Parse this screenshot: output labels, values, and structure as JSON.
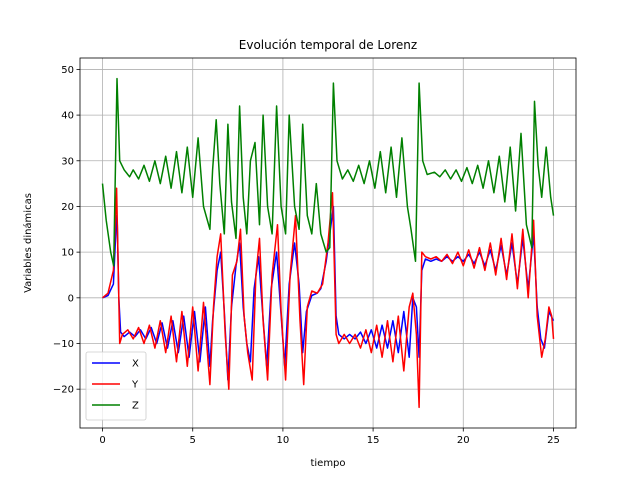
{
  "chart_data": {
    "type": "line",
    "title": "Evolución temporal de Lorenz",
    "xlabel": "tiempo",
    "ylabel": "Variables dinámicas",
    "xlim": [
      -1.25,
      26.25
    ],
    "ylim": [
      -28.5,
      52.5
    ],
    "xticks": [
      0,
      5,
      10,
      15,
      20,
      25
    ],
    "yticks": [
      -20,
      -10,
      0,
      10,
      20,
      30,
      40,
      50
    ],
    "grid": true,
    "legend_position": "lower-left",
    "series": [
      {
        "name": "X",
        "color": "#0000ff",
        "points": [
          [
            0,
            0
          ],
          [
            0.3,
            0.5
          ],
          [
            0.6,
            3
          ],
          [
            0.78,
            18
          ],
          [
            0.82,
            16
          ],
          [
            0.9,
            0
          ],
          [
            1.0,
            -7.5
          ],
          [
            1.2,
            -8.5
          ],
          [
            1.5,
            -7.5
          ],
          [
            1.8,
            -8.5
          ],
          [
            2.1,
            -7
          ],
          [
            2.4,
            -9
          ],
          [
            2.7,
            -6.5
          ],
          [
            3.0,
            -10
          ],
          [
            3.3,
            -5.5
          ],
          [
            3.6,
            -11
          ],
          [
            3.9,
            -5
          ],
          [
            4.2,
            -12
          ],
          [
            4.5,
            -4
          ],
          [
            4.8,
            -13
          ],
          [
            5.1,
            -3
          ],
          [
            5.4,
            -14
          ],
          [
            5.7,
            -2
          ],
          [
            5.95,
            -15
          ],
          [
            6.1,
            -5
          ],
          [
            6.35,
            6
          ],
          [
            6.55,
            10
          ],
          [
            6.75,
            -3
          ],
          [
            6.95,
            -18
          ],
          [
            7.15,
            -2
          ],
          [
            7.4,
            7
          ],
          [
            7.6,
            12
          ],
          [
            7.8,
            -2
          ],
          [
            8.0,
            -10
          ],
          [
            8.2,
            -14
          ],
          [
            8.4,
            2
          ],
          [
            8.65,
            9
          ],
          [
            8.85,
            -2
          ],
          [
            9.1,
            -15
          ],
          [
            9.35,
            2
          ],
          [
            9.65,
            10
          ],
          [
            9.85,
            -1
          ],
          [
            10.1,
            -15
          ],
          [
            10.35,
            3
          ],
          [
            10.65,
            12
          ],
          [
            10.9,
            3
          ],
          [
            11.1,
            -12
          ],
          [
            11.3,
            -3
          ],
          [
            11.6,
            0.5
          ],
          [
            11.9,
            1
          ],
          [
            12.1,
            2
          ],
          [
            12.4,
            8
          ],
          [
            12.6,
            14
          ],
          [
            12.8,
            20
          ],
          [
            12.95,
            -4
          ],
          [
            13.1,
            -8
          ],
          [
            13.4,
            -9
          ],
          [
            13.7,
            -8
          ],
          [
            14.0,
            -9
          ],
          [
            14.3,
            -7.5
          ],
          [
            14.6,
            -10
          ],
          [
            14.9,
            -7
          ],
          [
            15.2,
            -11
          ],
          [
            15.5,
            -6
          ],
          [
            15.8,
            -11
          ],
          [
            16.1,
            -5
          ],
          [
            16.4,
            -12
          ],
          [
            16.7,
            -3
          ],
          [
            17.0,
            -13
          ],
          [
            17.2,
            0
          ],
          [
            17.4,
            -2
          ],
          [
            17.55,
            -13
          ],
          [
            17.7,
            6
          ],
          [
            17.9,
            8.5
          ],
          [
            18.2,
            8
          ],
          [
            18.5,
            8.5
          ],
          [
            18.8,
            8
          ],
          [
            19.1,
            9
          ],
          [
            19.4,
            8
          ],
          [
            19.7,
            9
          ],
          [
            20.0,
            8
          ],
          [
            20.3,
            9.5
          ],
          [
            20.6,
            7.5
          ],
          [
            20.9,
            10
          ],
          [
            21.2,
            7
          ],
          [
            21.5,
            10.5
          ],
          [
            21.8,
            6
          ],
          [
            22.1,
            11.5
          ],
          [
            22.4,
            5
          ],
          [
            22.7,
            12
          ],
          [
            23.0,
            3
          ],
          [
            23.3,
            13
          ],
          [
            23.6,
            2
          ],
          [
            23.9,
            14
          ],
          [
            24.1,
            -2
          ],
          [
            24.3,
            -9
          ],
          [
            24.5,
            -11
          ],
          [
            24.75,
            -3
          ],
          [
            25.0,
            -5
          ]
        ]
      },
      {
        "name": "Y",
        "color": "#ff0000",
        "points": [
          [
            0,
            0
          ],
          [
            0.3,
            1
          ],
          [
            0.6,
            6
          ],
          [
            0.78,
            24
          ],
          [
            0.85,
            10
          ],
          [
            0.95,
            -10
          ],
          [
            1.1,
            -8
          ],
          [
            1.4,
            -7
          ],
          [
            1.7,
            -9
          ],
          [
            2.0,
            -6.5
          ],
          [
            2.3,
            -10
          ],
          [
            2.6,
            -6
          ],
          [
            2.9,
            -11
          ],
          [
            3.2,
            -5
          ],
          [
            3.5,
            -12
          ],
          [
            3.8,
            -4
          ],
          [
            4.1,
            -14
          ],
          [
            4.4,
            -3
          ],
          [
            4.7,
            -15
          ],
          [
            5.0,
            -2
          ],
          [
            5.3,
            -16
          ],
          [
            5.6,
            -1
          ],
          [
            5.95,
            -19
          ],
          [
            6.15,
            -2
          ],
          [
            6.35,
            9
          ],
          [
            6.55,
            14
          ],
          [
            6.8,
            -8
          ],
          [
            7.0,
            -20
          ],
          [
            7.2,
            5
          ],
          [
            7.45,
            8
          ],
          [
            7.65,
            15
          ],
          [
            7.85,
            -4
          ],
          [
            8.05,
            -12
          ],
          [
            8.3,
            -18
          ],
          [
            8.5,
            5
          ],
          [
            8.7,
            13
          ],
          [
            8.9,
            -5
          ],
          [
            9.15,
            -18
          ],
          [
            9.4,
            5
          ],
          [
            9.7,
            16
          ],
          [
            9.9,
            -3
          ],
          [
            10.15,
            -18
          ],
          [
            10.4,
            5
          ],
          [
            10.7,
            18
          ],
          [
            10.95,
            -5
          ],
          [
            11.15,
            -19
          ],
          [
            11.35,
            -2
          ],
          [
            11.6,
            1.5
          ],
          [
            11.9,
            1
          ],
          [
            12.2,
            3
          ],
          [
            12.5,
            12
          ],
          [
            12.75,
            23
          ],
          [
            12.95,
            -8
          ],
          [
            13.1,
            -10
          ],
          [
            13.4,
            -8
          ],
          [
            13.7,
            -10
          ],
          [
            14.0,
            -8
          ],
          [
            14.3,
            -11
          ],
          [
            14.6,
            -7
          ],
          [
            14.9,
            -12
          ],
          [
            15.2,
            -6
          ],
          [
            15.5,
            -13
          ],
          [
            15.8,
            -5
          ],
          [
            16.1,
            -14
          ],
          [
            16.4,
            -4
          ],
          [
            16.7,
            -16
          ],
          [
            17.0,
            -2
          ],
          [
            17.2,
            1
          ],
          [
            17.4,
            -8
          ],
          [
            17.55,
            -24
          ],
          [
            17.7,
            10
          ],
          [
            17.9,
            9
          ],
          [
            18.2,
            8.5
          ],
          [
            18.5,
            9
          ],
          [
            18.8,
            8
          ],
          [
            19.1,
            9.5
          ],
          [
            19.4,
            7.5
          ],
          [
            19.7,
            10
          ],
          [
            20.0,
            7
          ],
          [
            20.3,
            10.5
          ],
          [
            20.6,
            6.5
          ],
          [
            20.9,
            11
          ],
          [
            21.2,
            6
          ],
          [
            21.5,
            12
          ],
          [
            21.8,
            5
          ],
          [
            22.1,
            13
          ],
          [
            22.4,
            4
          ],
          [
            22.7,
            14
          ],
          [
            23.0,
            2
          ],
          [
            23.3,
            15
          ],
          [
            23.6,
            0
          ],
          [
            23.9,
            17
          ],
          [
            24.1,
            -4
          ],
          [
            24.35,
            -13
          ],
          [
            24.55,
            -9
          ],
          [
            24.75,
            -2
          ],
          [
            24.9,
            -4
          ],
          [
            25.0,
            -9
          ]
        ]
      },
      {
        "name": "Z",
        "color": "#008000",
        "points": [
          [
            0,
            25
          ],
          [
            0.2,
            17
          ],
          [
            0.45,
            10
          ],
          [
            0.62,
            7
          ],
          [
            0.8,
            48
          ],
          [
            0.95,
            30
          ],
          [
            1.2,
            28
          ],
          [
            1.5,
            26.5
          ],
          [
            1.7,
            28
          ],
          [
            2.0,
            26
          ],
          [
            2.3,
            29
          ],
          [
            2.6,
            25.5
          ],
          [
            2.9,
            30
          ],
          [
            3.2,
            25
          ],
          [
            3.5,
            31
          ],
          [
            3.8,
            24
          ],
          [
            4.1,
            32
          ],
          [
            4.4,
            23
          ],
          [
            4.7,
            33
          ],
          [
            5.0,
            22
          ],
          [
            5.3,
            35
          ],
          [
            5.6,
            20
          ],
          [
            5.95,
            15
          ],
          [
            6.1,
            28
          ],
          [
            6.3,
            39
          ],
          [
            6.5,
            25
          ],
          [
            6.75,
            14
          ],
          [
            6.95,
            38
          ],
          [
            7.15,
            21
          ],
          [
            7.4,
            13
          ],
          [
            7.6,
            42
          ],
          [
            7.8,
            22
          ],
          [
            8.0,
            14
          ],
          [
            8.2,
            30
          ],
          [
            8.45,
            34
          ],
          [
            8.7,
            16
          ],
          [
            8.9,
            40
          ],
          [
            9.15,
            20
          ],
          [
            9.4,
            14
          ],
          [
            9.65,
            42
          ],
          [
            9.9,
            20
          ],
          [
            10.15,
            14
          ],
          [
            10.35,
            40
          ],
          [
            10.65,
            20
          ],
          [
            10.9,
            15
          ],
          [
            11.1,
            38
          ],
          [
            11.35,
            18
          ],
          [
            11.6,
            14
          ],
          [
            11.85,
            25
          ],
          [
            12.1,
            14
          ],
          [
            12.4,
            10
          ],
          [
            12.6,
            11
          ],
          [
            12.8,
            47
          ],
          [
            13.0,
            30
          ],
          [
            13.3,
            26
          ],
          [
            13.6,
            28
          ],
          [
            13.9,
            25.5
          ],
          [
            14.2,
            29
          ],
          [
            14.5,
            25
          ],
          [
            14.8,
            30
          ],
          [
            15.1,
            24
          ],
          [
            15.4,
            32
          ],
          [
            15.7,
            23
          ],
          [
            16.0,
            33
          ],
          [
            16.3,
            22
          ],
          [
            16.6,
            35
          ],
          [
            16.9,
            20
          ],
          [
            17.1,
            15
          ],
          [
            17.35,
            8
          ],
          [
            17.55,
            47
          ],
          [
            17.75,
            30
          ],
          [
            18.0,
            27
          ],
          [
            18.4,
            27.5
          ],
          [
            18.7,
            26.5
          ],
          [
            19.0,
            28
          ],
          [
            19.3,
            26
          ],
          [
            19.6,
            28
          ],
          [
            19.9,
            25.5
          ],
          [
            20.2,
            28.5
          ],
          [
            20.5,
            25
          ],
          [
            20.8,
            29
          ],
          [
            21.1,
            24
          ],
          [
            21.4,
            30
          ],
          [
            21.7,
            23
          ],
          [
            22.0,
            31
          ],
          [
            22.3,
            21
          ],
          [
            22.6,
            33
          ],
          [
            22.9,
            19
          ],
          [
            23.2,
            36
          ],
          [
            23.5,
            16
          ],
          [
            23.8,
            11
          ],
          [
            23.95,
            43
          ],
          [
            24.15,
            29
          ],
          [
            24.35,
            22
          ],
          [
            24.6,
            33
          ],
          [
            24.85,
            22
          ],
          [
            25.0,
            18
          ]
        ]
      }
    ]
  }
}
